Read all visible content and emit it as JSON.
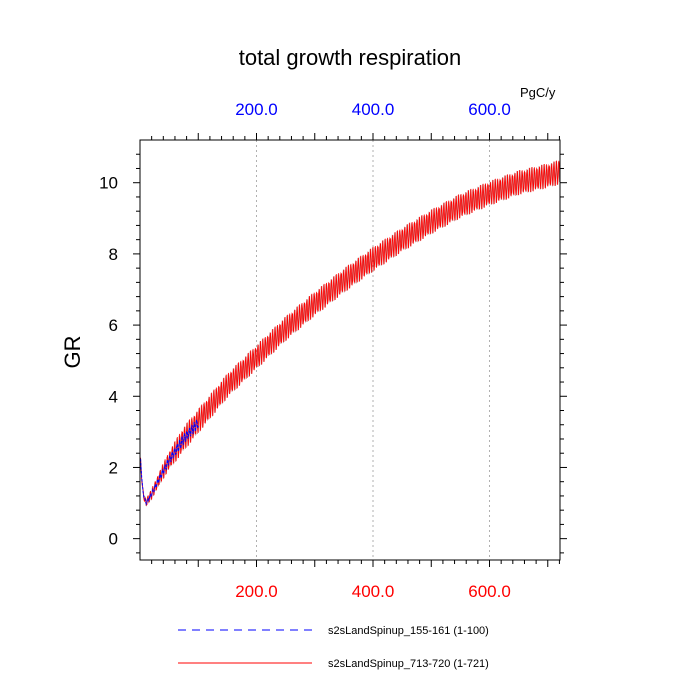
{
  "chart_data": {
    "type": "line",
    "title": "total growth respiration",
    "ylabel": "GR",
    "units": "PgC/y",
    "xlim": [
      0,
      721
    ],
    "ylim": [
      -0.6,
      11.2
    ],
    "x_ticks": [
      200,
      400,
      600
    ],
    "x_tick_labels": [
      "200.0",
      "400.0",
      "600.0"
    ],
    "y_ticks": [
      0,
      2,
      4,
      6,
      8,
      10
    ],
    "y_tick_labels": [
      "0",
      "2",
      "4",
      "6",
      "8",
      "10"
    ],
    "grid": "vertical dotted at major x ticks",
    "colors": {
      "top_axis_labels": "#0000ff",
      "bottom_axis_labels": "#ff0000"
    },
    "series": [
      {
        "name": "s2sLandSpinup_713-720 (1-721)",
        "color": "#ff0000",
        "style": "solid",
        "x_range": [
          1,
          721
        ],
        "envelope_center": {
          "x": [
            1,
            5,
            10,
            20,
            35,
            50,
            75,
            100,
            150,
            200,
            250,
            300,
            350,
            400,
            450,
            500,
            550,
            600,
            650,
            700,
            721
          ],
          "y": [
            2.15,
            1.3,
            1.0,
            1.25,
            1.75,
            2.2,
            2.8,
            3.3,
            4.3,
            5.1,
            5.9,
            6.6,
            7.25,
            7.85,
            8.4,
            8.9,
            9.35,
            9.7,
            10.0,
            10.2,
            10.3
          ]
        },
        "seasonal_amplitude": 0.35
      },
      {
        "name": "s2sLandSpinup_155-161 (1-100)",
        "color": "#0000ff",
        "style": "dashed",
        "x_range": [
          1,
          100
        ],
        "envelope_center": {
          "x": [
            1,
            5,
            10,
            20,
            35,
            50,
            75,
            100
          ],
          "y": [
            2.2,
            1.3,
            1.0,
            1.25,
            1.75,
            2.2,
            2.8,
            3.25
          ]
        },
        "seasonal_amplitude": 0.15
      }
    ]
  }
}
